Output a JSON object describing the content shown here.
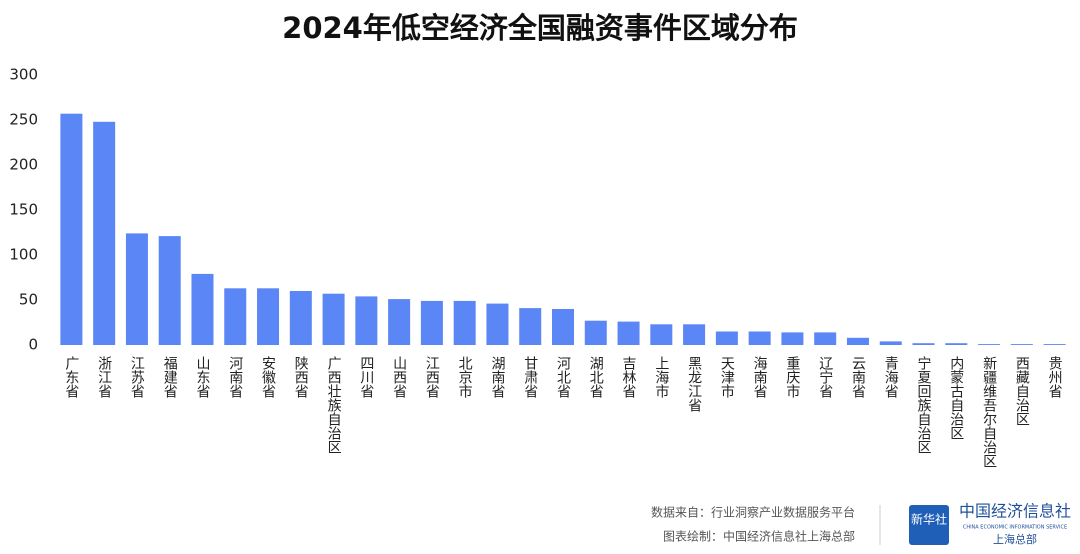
{
  "chart_data": {
    "type": "bar",
    "title": "2024年低空经济全国融资事件区域分布",
    "categories": [
      "广东省",
      "浙江省",
      "江苏省",
      "福建省",
      "山东省",
      "河南省",
      "安徽省",
      "陕西省",
      "广西壮族自治区",
      "四川省",
      "山西省",
      "江西省",
      "北京市",
      "湖南省",
      "甘肃省",
      "河北省",
      "湖北省",
      "吉林省",
      "上海市",
      "黑龙江省",
      "天津市",
      "海南省",
      "重庆市",
      "辽宁省",
      "云南省",
      "青海省",
      "宁夏回族自治区",
      "内蒙古自治区",
      "新疆维吾尔自治区",
      "西藏自治区",
      "贵州省"
    ],
    "values": [
      257,
      248,
      124,
      121,
      79,
      63,
      63,
      60,
      57,
      54,
      51,
      49,
      49,
      46,
      41,
      40,
      27,
      26,
      23,
      23,
      15,
      15,
      14,
      14,
      8,
      4,
      2,
      2,
      1,
      1,
      1
    ],
    "color": "#5b86f5",
    "ylim": [
      0,
      300
    ],
    "yticks": [
      0,
      50,
      100,
      150,
      200,
      250,
      300
    ],
    "grid": false
  },
  "footer": {
    "source": "数据来自：行业洞察产业数据服务平台",
    "credit": "图表绘制：中国经济信息社上海总部"
  },
  "logo": {
    "badge": "新华社",
    "name": "中国经济信息社",
    "english": "CHINA ECONOMIC INFORMATION SERVICE",
    "branch": "上海总部"
  }
}
